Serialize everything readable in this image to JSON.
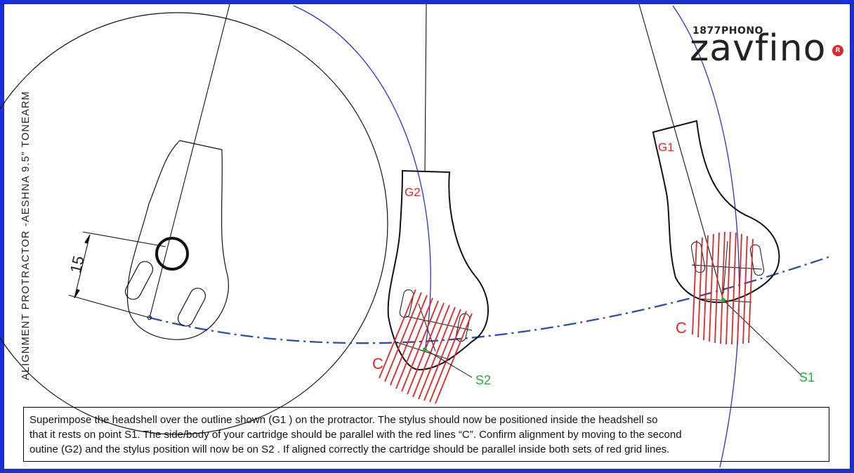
{
  "brand": {
    "top_text": "1877PHONO",
    "name": "zavfino",
    "registered_mark": "R",
    "accent_color": "#e0262b"
  },
  "side_label": "ALIGNMENT PROTRACTOR -AESHNA 9.5\" TONEARM",
  "dimension_label": "15",
  "headshell_labels": {
    "g1": "G1",
    "g2": "G2",
    "c_left": "C",
    "c_right": "C"
  },
  "null_points": {
    "s1": "S1",
    "s2": "S2"
  },
  "instructions": {
    "line1": "Superimpose the headshell over the outline shown (G1 ) on the protractor. The stylus should now be positioned inside the headshell so",
    "line2": "that it rests on point S1. The side/body of your cartridge should be parallel with the red lines “C”.  Confirm alignment by moving to the second",
    "line3": "outine (G2) and the stylus position will now be on S2 . If aligned correctly the cartridge should be parallel inside both sets of red grid lines."
  },
  "colors": {
    "frame": "#1a2fd6",
    "arc_blue": "#2c32c9",
    "dash_line": "#2f4f9b",
    "grid_red": "#e0262b",
    "point_green": "#2aa838",
    "label_green": "#2aa838"
  }
}
